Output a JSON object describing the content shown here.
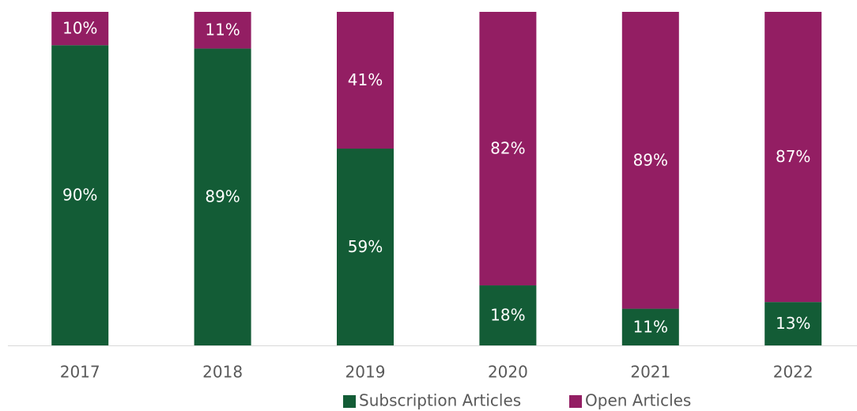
{
  "chart_data": {
    "type": "stacked_bar",
    "categories": [
      "2017",
      "2018",
      "2019",
      "2020",
      "2021",
      "2022"
    ],
    "series": [
      {
        "name": "Subscription Articles",
        "color": "#135c36",
        "values": [
          90,
          89,
          59,
          18,
          11,
          13
        ],
        "value_labels": [
          "90%",
          "89%",
          "59%",
          "18%",
          "11%",
          "13%"
        ]
      },
      {
        "name": "Open Articles",
        "color": "#931e63",
        "values": [
          10,
          11,
          41,
          82,
          89,
          87
        ],
        "value_labels": [
          "10%",
          "11%",
          "41%",
          "82%",
          "89%",
          "87%"
        ]
      }
    ],
    "ylim": [
      0,
      100
    ]
  }
}
